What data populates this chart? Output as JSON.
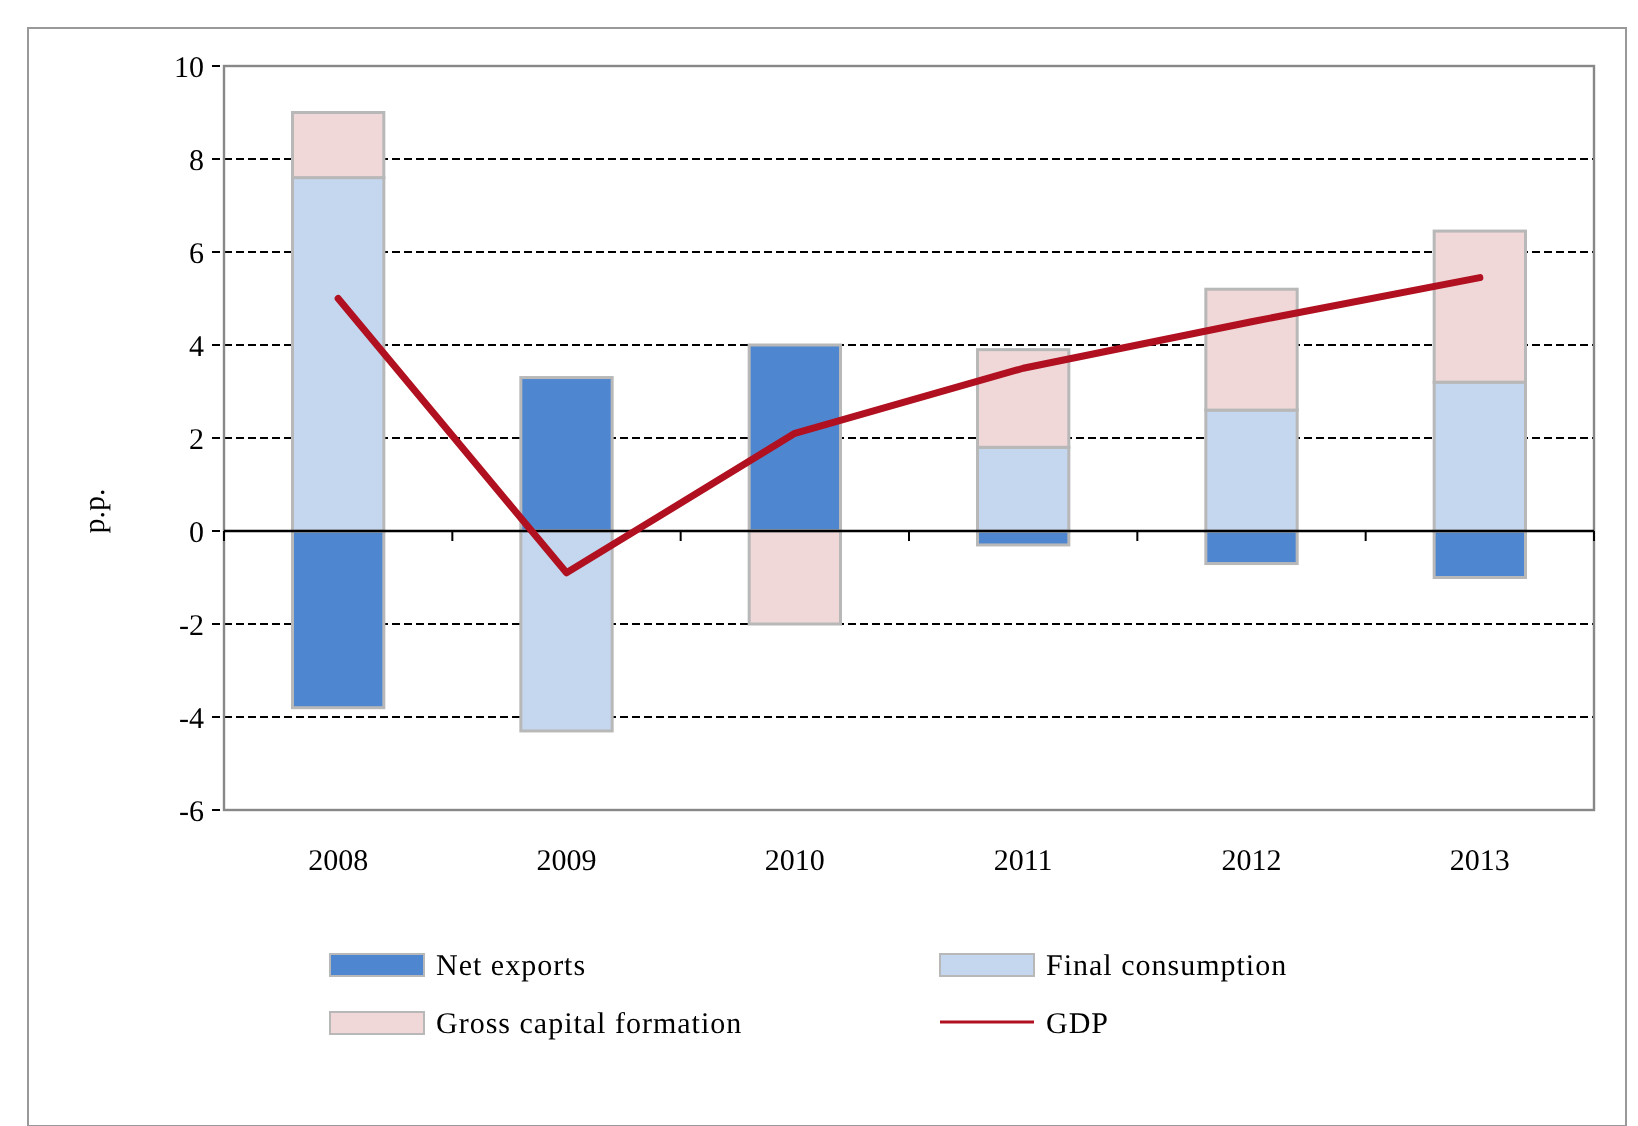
{
  "chart_data": {
    "type": "bar",
    "stacked": true,
    "ylabel": "p.p.",
    "categories": [
      "2008",
      "2009",
      "2010",
      "2011",
      "2012",
      "2013"
    ],
    "series": [
      {
        "name": "Net exports",
        "color": "#4f86d0",
        "values": [
          -3.8,
          3.3,
          4.0,
          -0.3,
          -0.7,
          -1.0
        ]
      },
      {
        "name": "Final consumption",
        "color": "#c5d7ee",
        "values": [
          7.6,
          -4.3,
          0,
          1.8,
          2.6,
          3.2
        ]
      },
      {
        "name": "Gross capital formation",
        "color": "#f0d8d8",
        "values": [
          1.4,
          0,
          -2.0,
          2.1,
          2.6,
          3.25
        ]
      },
      {
        "name": "GDP",
        "type": "line",
        "color": "#b01020",
        "values": [
          5.0,
          -0.9,
          2.1,
          3.5,
          4.5,
          5.45
        ]
      }
    ],
    "ylim": [
      -6,
      10
    ],
    "yticks": [
      -6,
      -4,
      -2,
      0,
      2,
      4,
      6,
      8,
      10
    ],
    "grid": "y",
    "legend": "bottom"
  }
}
